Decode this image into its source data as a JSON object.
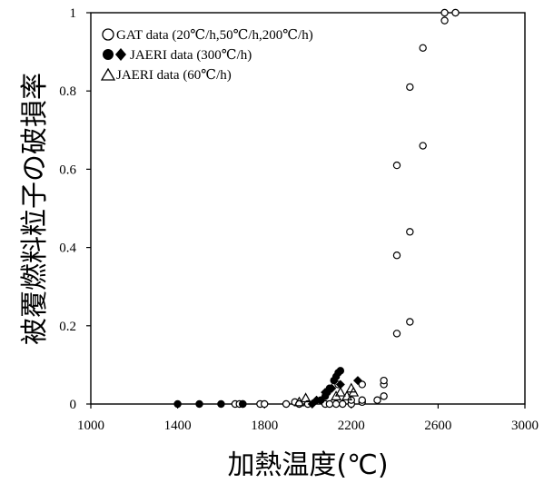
{
  "chart_data": {
    "type": "scatter",
    "xlabel": "加熱温度(℃)",
    "ylabel": "被覆燃料粒子の破損率",
    "xlim": [
      1000,
      3000
    ],
    "ylim": [
      0,
      1
    ],
    "x_ticks": [
      "1000",
      "1400",
      "1800",
      "2200",
      "2600",
      "3000"
    ],
    "y_ticks": [
      "0",
      "0.2",
      "0.4",
      "0.6",
      "0.8",
      "1"
    ],
    "grid": false,
    "legend_position": "top-left",
    "legend": [
      {
        "symbols": "○",
        "label": "GAT data (20℃/h,50℃/h,200℃/h)"
      },
      {
        "symbols": "●◆",
        "label": "JAERI data (300℃/h)"
      },
      {
        "symbols": "△",
        "label": "JAERI data (60℃/h)"
      }
    ],
    "series": [
      {
        "marker": "open-circle",
        "points": [
          [
            1665,
            0.0
          ],
          [
            1685,
            0.0
          ],
          [
            1700,
            0.0
          ],
          [
            1780,
            0.0
          ],
          [
            1800,
            0.0
          ],
          [
            1900,
            0.0
          ],
          [
            1940,
            0.005
          ],
          [
            1960,
            0.0
          ],
          [
            2000,
            0.0
          ],
          [
            2080,
            0.0
          ],
          [
            2100,
            0.0
          ],
          [
            2130,
            0.0
          ],
          [
            2140,
            0.05
          ],
          [
            2160,
            0.0
          ],
          [
            2200,
            0.0
          ],
          [
            2200,
            0.01
          ],
          [
            2250,
            0.005
          ],
          [
            2250,
            0.01
          ],
          [
            2250,
            0.05
          ],
          [
            2320,
            0.01
          ],
          [
            2350,
            0.02
          ],
          [
            2350,
            0.05
          ],
          [
            2350,
            0.06
          ],
          [
            2410,
            0.18
          ],
          [
            2410,
            0.38
          ],
          [
            2410,
            0.61
          ],
          [
            2470,
            0.21
          ],
          [
            2470,
            0.44
          ],
          [
            2470,
            0.81
          ],
          [
            2530,
            0.66
          ],
          [
            2530,
            0.91
          ],
          [
            2630,
            0.98
          ],
          [
            2630,
            1.0
          ],
          [
            2680,
            1.0
          ]
        ]
      },
      {
        "marker": "filled-circle",
        "points": [
          [
            1400,
            0.0
          ],
          [
            1500,
            0.0
          ],
          [
            1600,
            0.0
          ],
          [
            1700,
            0.0
          ],
          [
            2060,
            0.01
          ],
          [
            2080,
            0.02
          ],
          [
            2090,
            0.03
          ],
          [
            2100,
            0.04
          ],
          [
            2120,
            0.06
          ],
          [
            2130,
            0.07
          ],
          [
            2140,
            0.08
          ],
          [
            2150,
            0.085
          ]
        ]
      },
      {
        "marker": "filled-diamond",
        "points": [
          [
            2020,
            0.0
          ],
          [
            2040,
            0.01
          ],
          [
            2080,
            0.03
          ],
          [
            2110,
            0.04
          ],
          [
            2150,
            0.05
          ],
          [
            2230,
            0.06
          ]
        ]
      },
      {
        "marker": "open-triangle",
        "points": [
          [
            1960,
            0.005
          ],
          [
            1990,
            0.015
          ],
          [
            2130,
            0.02
          ],
          [
            2150,
            0.03
          ],
          [
            2180,
            0.02
          ],
          [
            2200,
            0.04
          ],
          [
            2210,
            0.03
          ]
        ]
      }
    ]
  }
}
